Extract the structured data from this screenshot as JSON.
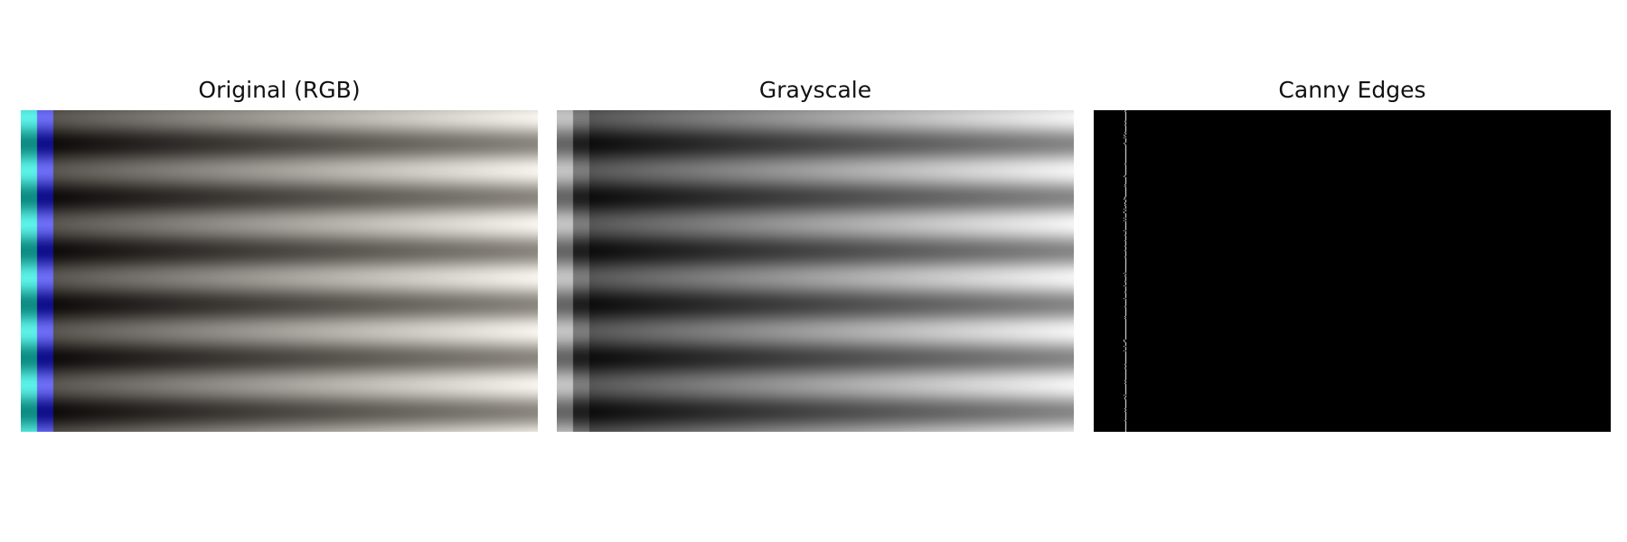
{
  "figure": {
    "panels": [
      {
        "title": "Original (RGB)",
        "kind": "rgb"
      },
      {
        "title": "Grayscale",
        "kind": "grayscale"
      },
      {
        "title": "Canny Edges",
        "kind": "edges"
      }
    ]
  },
  "image": {
    "stripe_count": 6,
    "left_bands": [
      {
        "name": "teal",
        "light": "#5cf0e6",
        "dark": "#0e8d84"
      },
      {
        "name": "blue",
        "light": "#6c6cf4",
        "dark": "#10108c"
      }
    ],
    "gradient": {
      "start_dark": "#0f0d0b",
      "start_light": "#5a5550",
      "end_dark": "#8c8880",
      "end_light": "#f7f4ee"
    },
    "edges": {
      "background": "#000000",
      "line": "#ffffff"
    }
  }
}
